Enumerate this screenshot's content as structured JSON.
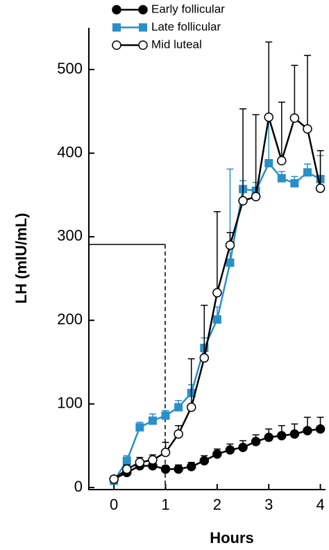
{
  "chart_data": {
    "type": "line",
    "x_label": "Hours",
    "y_label": "LH (mIU/mL)",
    "x": [
      0,
      0.25,
      0.5,
      0.75,
      1,
      1.25,
      1.5,
      1.75,
      2,
      2.25,
      2.5,
      2.75,
      3,
      3.25,
      3.5,
      3.75,
      4
    ],
    "series": [
      {
        "name": "Early follicular",
        "color": "#000000",
        "marker": "filled-circle",
        "values": [
          10,
          18,
          26,
          26,
          22,
          22,
          25,
          32,
          40,
          45,
          48,
          55,
          60,
          62,
          64,
          68,
          70
        ],
        "errors": [
          3,
          4,
          6,
          6,
          4,
          5,
          5,
          6,
          6,
          7,
          8,
          8,
          10,
          12,
          12,
          16,
          14
        ]
      },
      {
        "name": "Late follicular",
        "color": "#2a8fc8",
        "marker": "square",
        "values": [
          8,
          32,
          72,
          80,
          86,
          96,
          113,
          167,
          201,
          269,
          357,
          355,
          388,
          370,
          364,
          377,
          369
        ],
        "errors": [
          3,
          6,
          6,
          8,
          6,
          8,
          10,
          12,
          15,
          112,
          10,
          10,
          52,
          8,
          8,
          10,
          28
        ]
      },
      {
        "name": "Mid luteal",
        "color": "#000000",
        "marker": "open-circle",
        "values": [
          10,
          22,
          30,
          33,
          42,
          64,
          96,
          155,
          233,
          290,
          343,
          348,
          443,
          391,
          442,
          429,
          358
        ],
        "errors": [
          2,
          5,
          6,
          6,
          12,
          10,
          58,
          63,
          97,
          15,
          110,
          98,
          90,
          70,
          63,
          88,
          45
        ]
      }
    ],
    "xlim": [
      -0.5,
      4.1
    ],
    "xticks": [
      0,
      1,
      2,
      3,
      4
    ],
    "ylim": [
      0,
      550
    ],
    "yticks": [
      0,
      100,
      200,
      300,
      400,
      500
    ]
  }
}
